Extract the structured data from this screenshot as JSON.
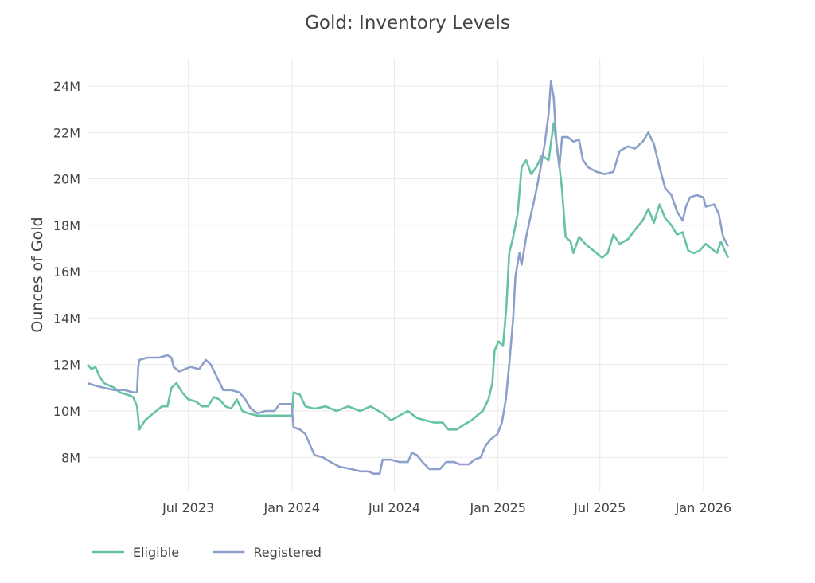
{
  "chart_data": {
    "type": "line",
    "title": "Gold: Inventory Levels",
    "xlabel": "",
    "ylabel": "Ounces of Gold",
    "xlim": [
      "2023-01-03",
      "2026-02-14"
    ],
    "ylim": [
      6.5,
      25.2
    ],
    "y_ticks": [
      8,
      10,
      12,
      14,
      16,
      18,
      20,
      22,
      24
    ],
    "y_tick_labels": [
      "8M",
      "10M",
      "12M",
      "14M",
      "16M",
      "18M",
      "20M",
      "22M",
      "24M"
    ],
    "x_ticks": [
      "2023-07-01",
      "2024-01-01",
      "2024-07-01",
      "2025-01-01",
      "2025-07-01",
      "2026-01-01"
    ],
    "x_tick_labels": [
      "Jul 2023",
      "Jan 2024",
      "Jul 2024",
      "Jan 2025",
      "Jul 2025",
      "Jan 2026"
    ],
    "grid": true,
    "legend_position": "bottom-left",
    "colors": {
      "Eligible": "#66c2a5",
      "Registered": "#8da0cb"
    },
    "series": [
      {
        "name": "Eligible",
        "points": [
          [
            "2023-01-03",
            12.0
          ],
          [
            "2023-01-10",
            11.8
          ],
          [
            "2023-01-17",
            11.9
          ],
          [
            "2023-01-24",
            11.5
          ],
          [
            "2023-02-01",
            11.2
          ],
          [
            "2023-02-10",
            11.1
          ],
          [
            "2023-02-20",
            11.0
          ],
          [
            "2023-03-01",
            10.8
          ],
          [
            "2023-03-15",
            10.7
          ],
          [
            "2023-03-25",
            10.6
          ],
          [
            "2023-04-01",
            10.2
          ],
          [
            "2023-04-05",
            9.2
          ],
          [
            "2023-04-15",
            9.6
          ],
          [
            "2023-04-25",
            9.8
          ],
          [
            "2023-05-05",
            10.0
          ],
          [
            "2023-05-15",
            10.2
          ],
          [
            "2023-05-25",
            10.2
          ],
          [
            "2023-06-01",
            11.0
          ],
          [
            "2023-06-10",
            11.2
          ],
          [
            "2023-06-20",
            10.8
          ],
          [
            "2023-07-01",
            10.5
          ],
          [
            "2023-07-15",
            10.4
          ],
          [
            "2023-07-25",
            10.2
          ],
          [
            "2023-08-05",
            10.2
          ],
          [
            "2023-08-15",
            10.6
          ],
          [
            "2023-08-25",
            10.5
          ],
          [
            "2023-09-05",
            10.2
          ],
          [
            "2023-09-15",
            10.1
          ],
          [
            "2023-09-25",
            10.5
          ],
          [
            "2023-10-05",
            10.0
          ],
          [
            "2023-10-15",
            9.9
          ],
          [
            "2023-11-01",
            9.8
          ],
          [
            "2023-12-01",
            9.8
          ],
          [
            "2024-01-01",
            9.8
          ],
          [
            "2024-01-04",
            10.8
          ],
          [
            "2024-01-15",
            10.7
          ],
          [
            "2024-01-25",
            10.2
          ],
          [
            "2024-02-10",
            10.1
          ],
          [
            "2024-03-01",
            10.2
          ],
          [
            "2024-03-20",
            10.0
          ],
          [
            "2024-04-10",
            10.2
          ],
          [
            "2024-05-01",
            10.0
          ],
          [
            "2024-05-20",
            10.2
          ],
          [
            "2024-06-10",
            9.9
          ],
          [
            "2024-06-25",
            9.6
          ],
          [
            "2024-07-10",
            9.8
          ],
          [
            "2024-07-25",
            10.0
          ],
          [
            "2024-08-10",
            9.7
          ],
          [
            "2024-08-25",
            9.6
          ],
          [
            "2024-09-10",
            9.5
          ],
          [
            "2024-09-25",
            9.5
          ],
          [
            "2024-10-05",
            9.2
          ],
          [
            "2024-10-20",
            9.2
          ],
          [
            "2024-11-01",
            9.4
          ],
          [
            "2024-11-15",
            9.6
          ],
          [
            "2024-11-25",
            9.8
          ],
          [
            "2024-12-05",
            10.0
          ],
          [
            "2024-12-15",
            10.5
          ],
          [
            "2024-12-22",
            11.2
          ],
          [
            "2024-12-26",
            12.6
          ],
          [
            "2025-01-02",
            13.0
          ],
          [
            "2025-01-10",
            12.8
          ],
          [
            "2025-01-16",
            14.5
          ],
          [
            "2025-01-21",
            16.8
          ],
          [
            "2025-01-28",
            17.5
          ],
          [
            "2025-02-05",
            18.5
          ],
          [
            "2025-02-12",
            20.5
          ],
          [
            "2025-02-20",
            20.8
          ],
          [
            "2025-03-01",
            20.2
          ],
          [
            "2025-03-10",
            20.5
          ],
          [
            "2025-03-20",
            21.0
          ],
          [
            "2025-04-01",
            20.8
          ],
          [
            "2025-04-10",
            22.4
          ],
          [
            "2025-04-18",
            21.0
          ],
          [
            "2025-04-25",
            19.5
          ],
          [
            "2025-05-01",
            17.5
          ],
          [
            "2025-05-10",
            17.3
          ],
          [
            "2025-05-15",
            16.8
          ],
          [
            "2025-05-25",
            17.5
          ],
          [
            "2025-06-05",
            17.2
          ],
          [
            "2025-06-15",
            17.0
          ],
          [
            "2025-06-25",
            16.8
          ],
          [
            "2025-07-05",
            16.6
          ],
          [
            "2025-07-15",
            16.8
          ],
          [
            "2025-07-25",
            17.6
          ],
          [
            "2025-08-05",
            17.2
          ],
          [
            "2025-08-20",
            17.4
          ],
          [
            "2025-09-01",
            17.8
          ],
          [
            "2025-09-15",
            18.2
          ],
          [
            "2025-09-25",
            18.7
          ],
          [
            "2025-10-05",
            18.1
          ],
          [
            "2025-10-15",
            18.9
          ],
          [
            "2025-10-25",
            18.3
          ],
          [
            "2025-11-05",
            18.0
          ],
          [
            "2025-11-15",
            17.6
          ],
          [
            "2025-11-25",
            17.7
          ],
          [
            "2025-12-05",
            16.9
          ],
          [
            "2025-12-15",
            16.8
          ],
          [
            "2025-12-25",
            16.9
          ],
          [
            "2026-01-05",
            17.2
          ],
          [
            "2026-01-15",
            17.0
          ],
          [
            "2026-01-25",
            16.8
          ],
          [
            "2026-02-01",
            17.3
          ],
          [
            "2026-02-08",
            16.9
          ],
          [
            "2026-02-14",
            16.6
          ]
        ]
      },
      {
        "name": "Registered",
        "points": [
          [
            "2023-01-03",
            11.2
          ],
          [
            "2023-01-15",
            11.1
          ],
          [
            "2023-02-01",
            11.0
          ],
          [
            "2023-02-20",
            10.9
          ],
          [
            "2023-03-10",
            10.9
          ],
          [
            "2023-03-25",
            10.8
          ],
          [
            "2023-04-01",
            10.8
          ],
          [
            "2023-04-03",
            11.9
          ],
          [
            "2023-04-05",
            12.2
          ],
          [
            "2023-04-20",
            12.3
          ],
          [
            "2023-05-10",
            12.3
          ],
          [
            "2023-05-25",
            12.4
          ],
          [
            "2023-06-01",
            12.3
          ],
          [
            "2023-06-05",
            11.9
          ],
          [
            "2023-06-15",
            11.7
          ],
          [
            "2023-06-25",
            11.8
          ],
          [
            "2023-07-05",
            11.9
          ],
          [
            "2023-07-20",
            11.8
          ],
          [
            "2023-08-01",
            12.2
          ],
          [
            "2023-08-10",
            12.0
          ],
          [
            "2023-08-20",
            11.5
          ],
          [
            "2023-09-01",
            10.9
          ],
          [
            "2023-09-15",
            10.9
          ],
          [
            "2023-09-30",
            10.8
          ],
          [
            "2023-10-10",
            10.5
          ],
          [
            "2023-10-20",
            10.1
          ],
          [
            "2023-11-01",
            9.9
          ],
          [
            "2023-11-15",
            10.0
          ],
          [
            "2023-12-01",
            10.0
          ],
          [
            "2023-12-10",
            10.3
          ],
          [
            "2023-12-31",
            10.3
          ],
          [
            "2024-01-04",
            9.3
          ],
          [
            "2024-01-15",
            9.2
          ],
          [
            "2024-01-25",
            9.0
          ],
          [
            "2024-02-01",
            8.6
          ],
          [
            "2024-02-10",
            8.1
          ],
          [
            "2024-02-25",
            8.0
          ],
          [
            "2024-03-10",
            7.8
          ],
          [
            "2024-03-25",
            7.6
          ],
          [
            "2024-04-15",
            7.5
          ],
          [
            "2024-05-01",
            7.4
          ],
          [
            "2024-05-15",
            7.4
          ],
          [
            "2024-05-25",
            7.3
          ],
          [
            "2024-06-05",
            7.3
          ],
          [
            "2024-06-10",
            7.9
          ],
          [
            "2024-06-25",
            7.9
          ],
          [
            "2024-07-10",
            7.8
          ],
          [
            "2024-07-25",
            7.8
          ],
          [
            "2024-08-01",
            8.2
          ],
          [
            "2024-08-10",
            8.1
          ],
          [
            "2024-08-20",
            7.8
          ],
          [
            "2024-09-01",
            7.5
          ],
          [
            "2024-09-20",
            7.5
          ],
          [
            "2024-10-01",
            7.8
          ],
          [
            "2024-10-15",
            7.8
          ],
          [
            "2024-10-25",
            7.7
          ],
          [
            "2024-11-10",
            7.7
          ],
          [
            "2024-11-20",
            7.9
          ],
          [
            "2024-12-01",
            8.0
          ],
          [
            "2024-12-10",
            8.5
          ],
          [
            "2024-12-20",
            8.8
          ],
          [
            "2024-12-31",
            9.0
          ],
          [
            "2025-01-08",
            9.5
          ],
          [
            "2025-01-15",
            10.5
          ],
          [
            "2025-01-21",
            12.0
          ],
          [
            "2025-01-28",
            14.0
          ],
          [
            "2025-02-01",
            15.8
          ],
          [
            "2025-02-08",
            16.8
          ],
          [
            "2025-02-12",
            16.3
          ],
          [
            "2025-02-20",
            17.5
          ],
          [
            "2025-03-01",
            18.5
          ],
          [
            "2025-03-10",
            19.5
          ],
          [
            "2025-03-18",
            20.5
          ],
          [
            "2025-03-25",
            21.5
          ],
          [
            "2025-04-01",
            22.8
          ],
          [
            "2025-04-05",
            24.2
          ],
          [
            "2025-04-10",
            23.5
          ],
          [
            "2025-04-15",
            21.5
          ],
          [
            "2025-04-20",
            20.5
          ],
          [
            "2025-04-25",
            21.8
          ],
          [
            "2025-05-05",
            21.8
          ],
          [
            "2025-05-15",
            21.6
          ],
          [
            "2025-05-25",
            21.7
          ],
          [
            "2025-06-01",
            20.8
          ],
          [
            "2025-06-10",
            20.5
          ],
          [
            "2025-06-25",
            20.3
          ],
          [
            "2025-07-10",
            20.2
          ],
          [
            "2025-07-25",
            20.3
          ],
          [
            "2025-08-05",
            21.2
          ],
          [
            "2025-08-20",
            21.4
          ],
          [
            "2025-09-01",
            21.3
          ],
          [
            "2025-09-15",
            21.6
          ],
          [
            "2025-09-25",
            22.0
          ],
          [
            "2025-10-05",
            21.5
          ],
          [
            "2025-10-15",
            20.5
          ],
          [
            "2025-10-25",
            19.6
          ],
          [
            "2025-11-05",
            19.3
          ],
          [
            "2025-11-15",
            18.6
          ],
          [
            "2025-11-25",
            18.2
          ],
          [
            "2025-12-01",
            18.8
          ],
          [
            "2025-12-08",
            19.2
          ],
          [
            "2025-12-20",
            19.3
          ],
          [
            "2026-01-01",
            19.2
          ],
          [
            "2026-01-05",
            18.8
          ],
          [
            "2026-01-20",
            18.9
          ],
          [
            "2026-01-28",
            18.5
          ],
          [
            "2026-02-05",
            17.5
          ],
          [
            "2026-02-14",
            17.1
          ]
        ]
      }
    ]
  }
}
